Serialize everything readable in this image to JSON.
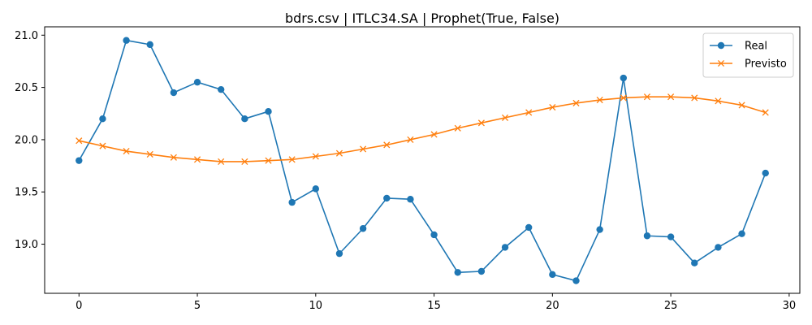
{
  "chart_data": {
    "type": "line",
    "title": "bdrs.csv | ITLC34.SA | Prophet(True, False)",
    "xlabel": "",
    "ylabel": "",
    "xlim": [
      -1.45,
      30.45
    ],
    "ylim": [
      18.53,
      21.08
    ],
    "xticks": [
      0,
      5,
      10,
      15,
      20,
      25,
      30
    ],
    "yticks": [
      19.0,
      19.5,
      20.0,
      20.5,
      21.0
    ],
    "xtick_labels": [
      "0",
      "5",
      "10",
      "15",
      "20",
      "25",
      "30"
    ],
    "ytick_labels": [
      "19.0",
      "19.5",
      "20.0",
      "20.5",
      "21.0"
    ],
    "grid": false,
    "legend_position": "top-right",
    "x": [
      0,
      1,
      2,
      3,
      4,
      5,
      6,
      7,
      8,
      9,
      10,
      11,
      12,
      13,
      14,
      15,
      16,
      17,
      18,
      19,
      20,
      21,
      22,
      23,
      24,
      25,
      26,
      27,
      28,
      29
    ],
    "series": [
      {
        "name": "Real",
        "color": "#1f77b4",
        "marker": "circle",
        "values": [
          19.8,
          20.2,
          20.95,
          20.91,
          20.45,
          20.55,
          20.48,
          20.2,
          20.27,
          19.4,
          19.53,
          18.91,
          19.15,
          19.44,
          19.43,
          19.09,
          18.73,
          18.74,
          18.97,
          19.16,
          18.71,
          18.65,
          19.14,
          20.59,
          19.08,
          19.07,
          18.82,
          18.97,
          19.1,
          19.68
        ]
      },
      {
        "name": "Previsto",
        "color": "#ff7f0e",
        "marker": "x",
        "values": [
          19.99,
          19.94,
          19.89,
          19.86,
          19.83,
          19.81,
          19.79,
          19.79,
          19.8,
          19.81,
          19.84,
          19.87,
          19.91,
          19.95,
          20.0,
          20.05,
          20.11,
          20.16,
          20.21,
          20.26,
          20.31,
          20.35,
          20.38,
          20.4,
          20.41,
          20.41,
          20.4,
          20.37,
          20.33,
          20.26
        ]
      }
    ]
  }
}
